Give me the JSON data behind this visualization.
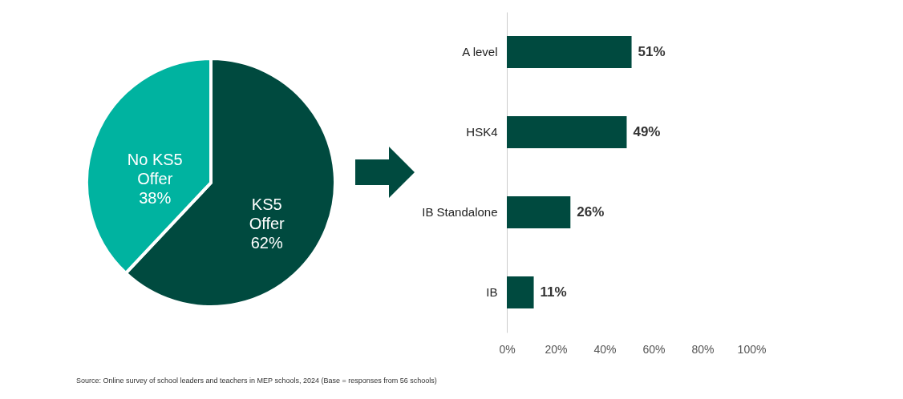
{
  "chart_data": [
    {
      "type": "pie",
      "categories": [
        "KS5 Offer",
        "No KS5 Offer"
      ],
      "values": [
        62,
        38
      ],
      "value_labels": [
        "62%",
        "38%"
      ],
      "colors": [
        "#004a3f",
        "#00b3a0"
      ],
      "legend": false
    },
    {
      "type": "bar",
      "orientation": "horizontal",
      "categories": [
        "A level",
        "HSK4",
        "IB Standalone",
        "IB"
      ],
      "values": [
        51,
        49,
        26,
        11
      ],
      "value_labels": [
        "51%",
        "49%",
        "26%",
        "11%"
      ],
      "color": "#004a3f",
      "xlim": [
        0,
        100
      ],
      "xticks": [
        {
          "value": 0,
          "label": "0%"
        },
        {
          "value": 20,
          "label": "20%"
        },
        {
          "value": 40,
          "label": "40%"
        },
        {
          "value": 60,
          "label": "60%"
        },
        {
          "value": 80,
          "label": "80%"
        },
        {
          "value": 100,
          "label": "100%"
        }
      ],
      "grid": false,
      "annotations": [
        "Source: Online survey of school leaders and teachers in MEP schools, 2024 (Base = responses from 56 schools)"
      ]
    }
  ]
}
